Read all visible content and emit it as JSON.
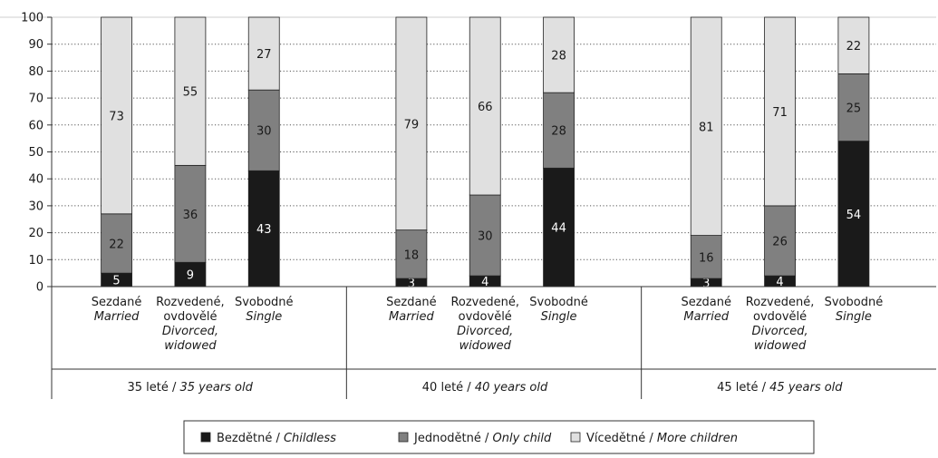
{
  "chart_data": {
    "type": "bar",
    "stacked": true,
    "ylim": [
      0,
      100
    ],
    "yticks": [
      0,
      10,
      20,
      30,
      40,
      50,
      60,
      70,
      80,
      90,
      100
    ],
    "grid": "dotted horizontal",
    "groups": [
      {
        "label_cz": "35 leté",
        "label_en": "35 years old",
        "categories": [
          {
            "cz": [
              "Sezdané"
            ],
            "en": [
              "Married"
            ],
            "values": [
              5,
              22,
              73
            ]
          },
          {
            "cz": [
              "Rozvedené,",
              "ovdovělé"
            ],
            "en": [
              "Divorced,",
              "widowed"
            ],
            "values": [
              9,
              36,
              55
            ]
          },
          {
            "cz": [
              "Svobodné"
            ],
            "en": [
              "Single"
            ],
            "values": [
              43,
              30,
              27
            ]
          }
        ]
      },
      {
        "label_cz": "40 leté",
        "label_en": "40 years old",
        "categories": [
          {
            "cz": [
              "Sezdané"
            ],
            "en": [
              "Married"
            ],
            "values": [
              3,
              18,
              79
            ]
          },
          {
            "cz": [
              "Rozvedené,",
              "ovdovělé"
            ],
            "en": [
              "Divorced,",
              "widowed"
            ],
            "values": [
              4,
              30,
              66
            ]
          },
          {
            "cz": [
              "Svobodné"
            ],
            "en": [
              "Single"
            ],
            "values": [
              44,
              28,
              28
            ]
          }
        ]
      },
      {
        "label_cz": "45 leté",
        "label_en": "45 years old",
        "categories": [
          {
            "cz": [
              "Sezdané"
            ],
            "en": [
              "Married"
            ],
            "values": [
              3,
              16,
              81
            ]
          },
          {
            "cz": [
              "Rozvedené,",
              "ovdovělé"
            ],
            "en": [
              "Divorced,",
              "widowed"
            ],
            "values": [
              4,
              26,
              71
            ]
          },
          {
            "cz": [
              "Svobodné"
            ],
            "en": [
              "Single"
            ],
            "values": [
              54,
              25,
              22
            ]
          }
        ]
      }
    ],
    "series": [
      {
        "name_cz": "Bezdětné",
        "name_en": "Childless",
        "color": "#1a1a1a",
        "label_color": "#ffffff"
      },
      {
        "name_cz": "Jednodětné",
        "name_en": "Only child",
        "color": "#808080",
        "label_color": "#1a1a1a"
      },
      {
        "name_cz": "Vícedětné",
        "name_en": "More children",
        "color": "#e0e0e0",
        "label_color": "#1a1a1a"
      }
    ],
    "legend_position": "bottom-center"
  }
}
